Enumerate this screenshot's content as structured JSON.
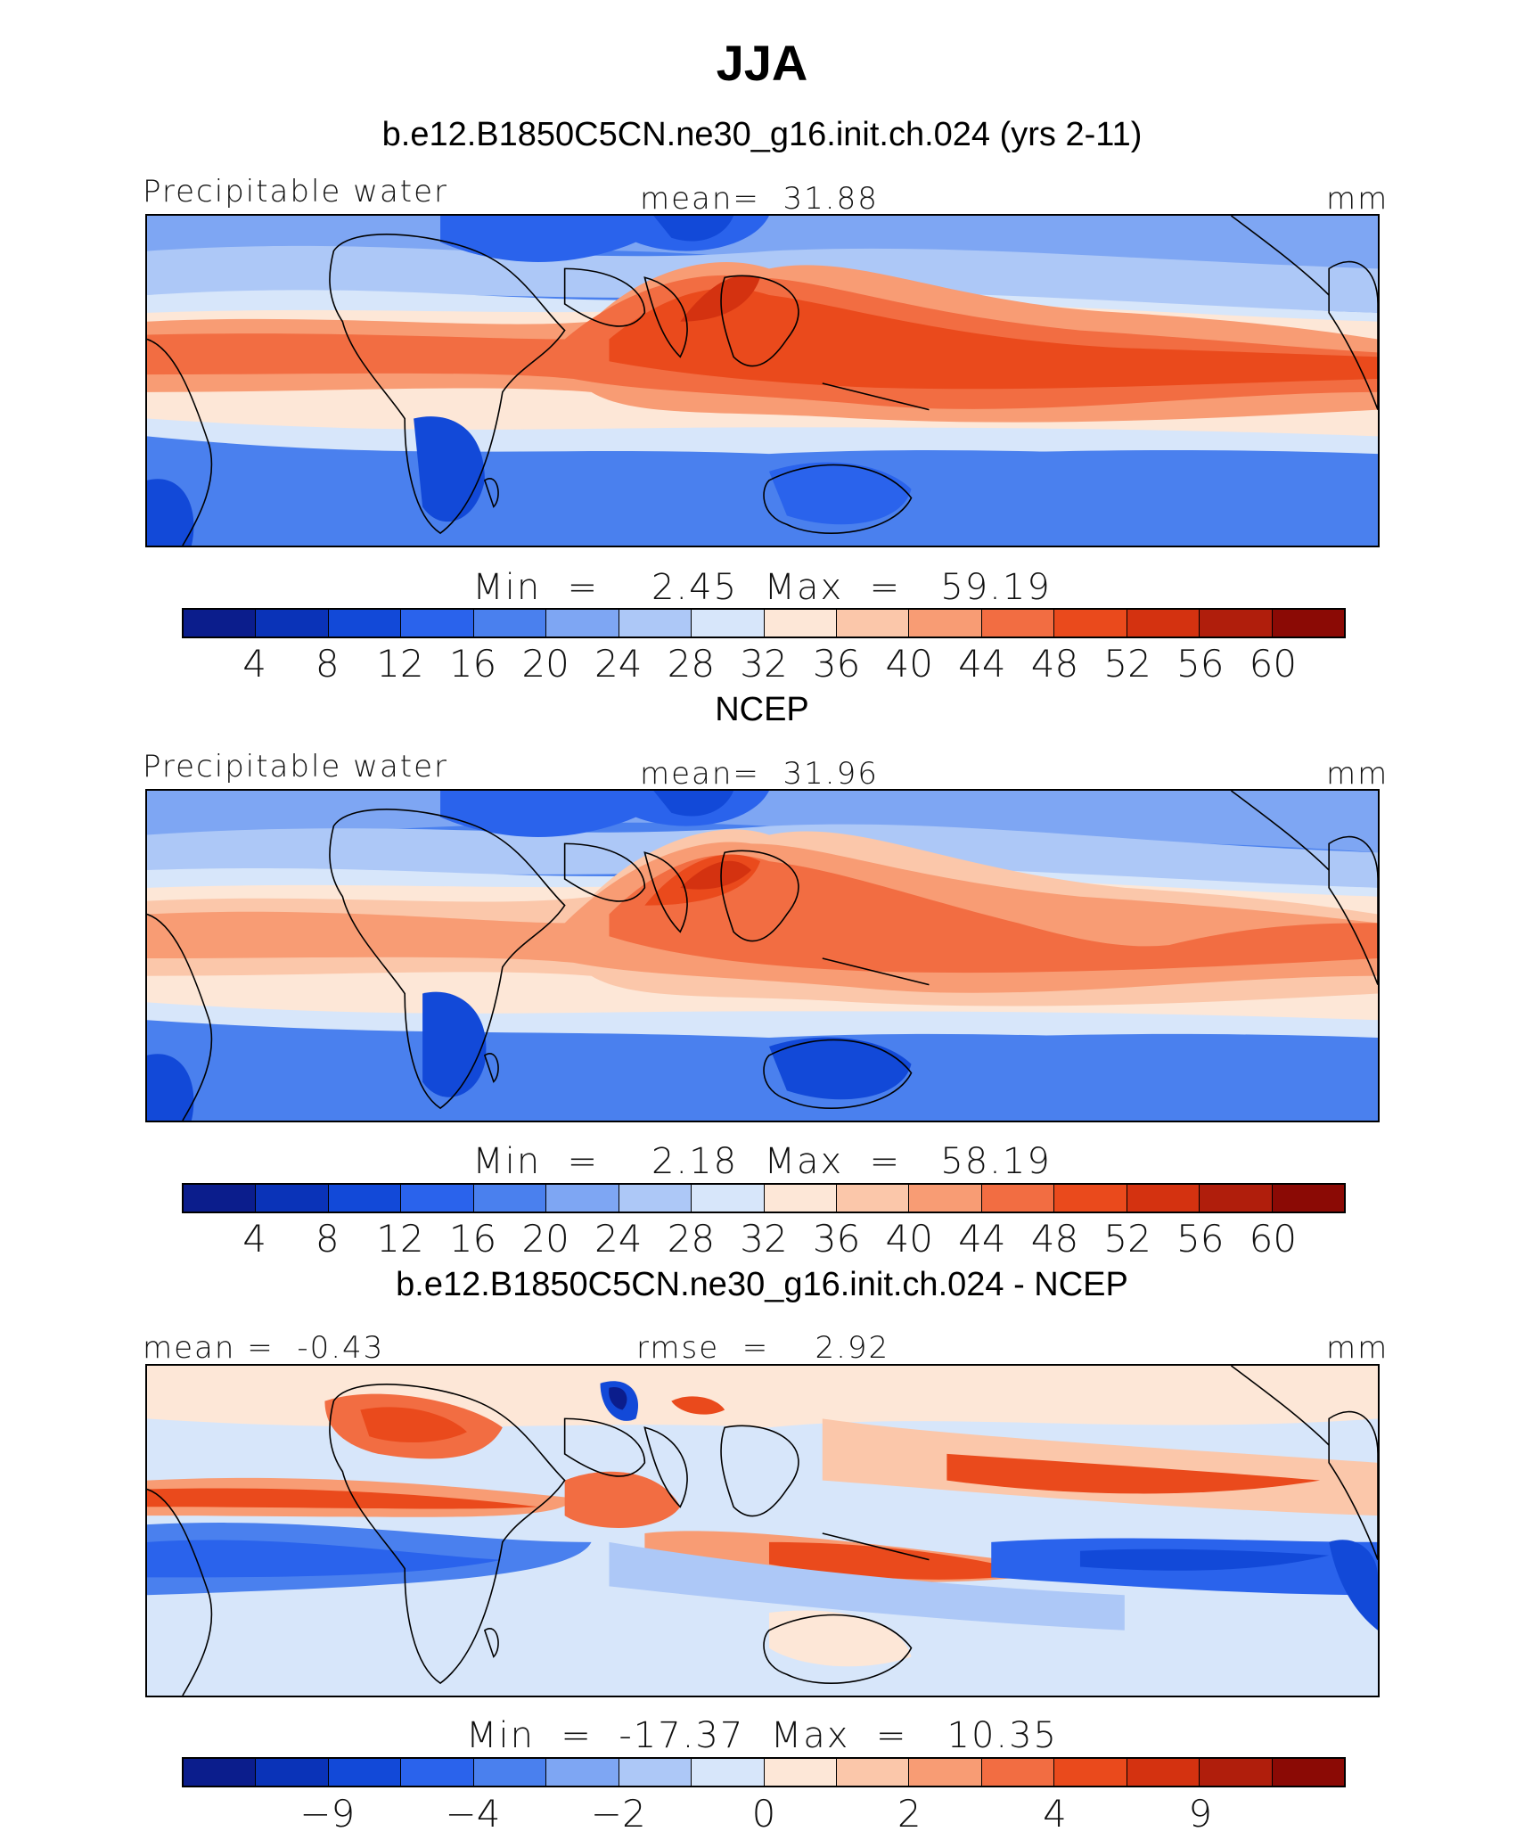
{
  "figure": {
    "title": "JJA"
  },
  "colors": [
    "#0b1d8c",
    "#0a33b8",
    "#1249d8",
    "#2a63ec",
    "#4a80ee",
    "#7ea6f3",
    "#adc8f7",
    "#d7e6fa",
    "#fde7d7",
    "#fbc7aa",
    "#f89c74",
    "#f26d42",
    "#ea4a1c",
    "#d43210",
    "#b01e0c",
    "#8b0a05"
  ],
  "panels": [
    {
      "id": "model",
      "title": "b.e12.B1850C5CN.ne30_g16.init.ch.024 (yrs 2-11)",
      "left_text": "Precipitable water",
      "center_text": "mean=  31.88",
      "right_text": "mm",
      "stats": "Min  =    2.45  Max  =   59.19",
      "colorbar_ticks": [
        "4",
        "8",
        "12",
        "16",
        "20",
        "24",
        "28",
        "32",
        "36",
        "40",
        "44",
        "48",
        "52",
        "56",
        "60"
      ]
    },
    {
      "id": "obs",
      "title": "NCEP",
      "left_text": "Precipitable water",
      "center_text": "mean=  31.96",
      "right_text": "mm",
      "stats": "Min  =    2.18  Max  =   58.19",
      "colorbar_ticks": [
        "4",
        "8",
        "12",
        "16",
        "20",
        "24",
        "28",
        "32",
        "36",
        "40",
        "44",
        "48",
        "52",
        "56",
        "60"
      ]
    },
    {
      "id": "diff",
      "title": "b.e12.B1850C5CN.ne30_g16.init.ch.024 - NCEP",
      "left_text": "mean =  -0.43",
      "center_text": "rmse  =    2.92",
      "right_text": "mm",
      "stats": "Min  =  -17.37  Max  =   10.35",
      "colorbar_ticks": [
        "-9",
        "-4",
        "-2",
        "0",
        "2",
        "4",
        "9"
      ]
    }
  ]
}
